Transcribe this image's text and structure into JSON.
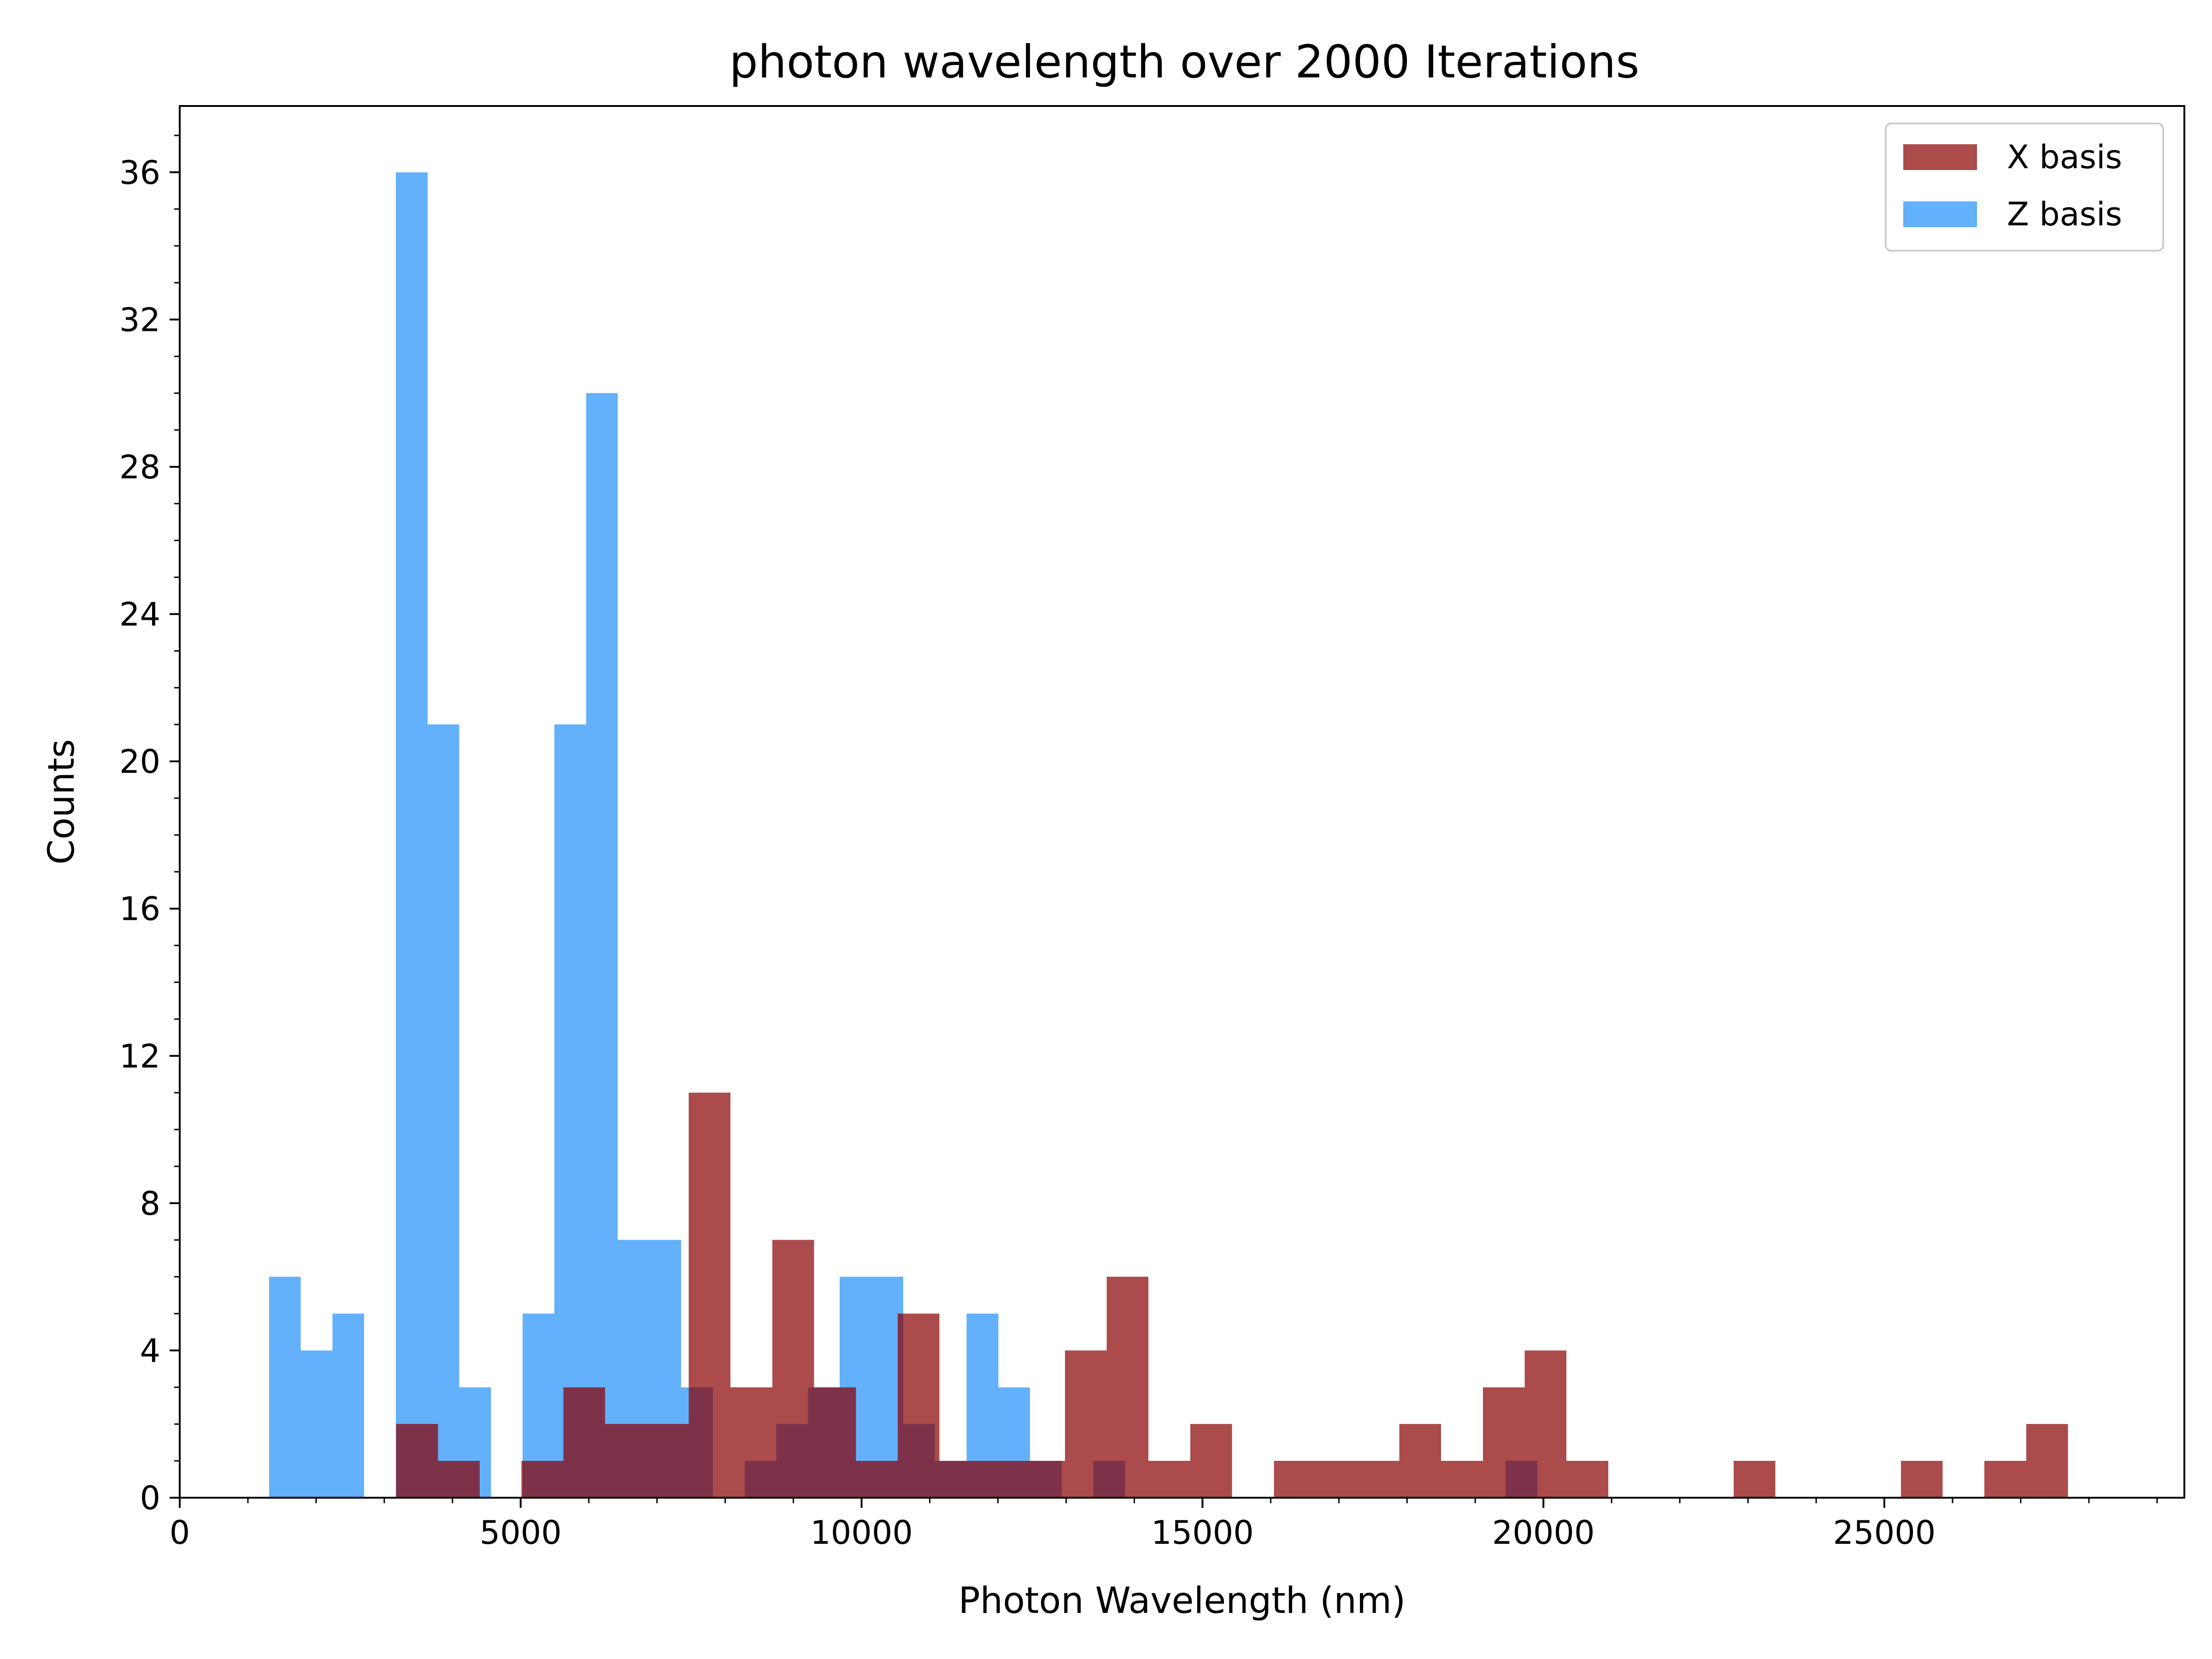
{
  "chart_data": {
    "type": "bar",
    "title": "photon wavelength over 2000 Iterations",
    "xlabel": "Photon Wavelength (nm)",
    "ylabel": "Counts",
    "xlim": [
      0,
      29400
    ],
    "ylim": [
      0,
      37.8
    ],
    "xticks": [
      0,
      5000,
      10000,
      15000,
      20000,
      25000
    ],
    "xtick_labels": [
      "0",
      "5000",
      "10000",
      "15000",
      "20000",
      "25000"
    ],
    "yticks": [
      0,
      4,
      8,
      12,
      16,
      20,
      24,
      28,
      32,
      36
    ],
    "ytick_labels": [
      "0",
      "4",
      "8",
      "12",
      "16",
      "20",
      "24",
      "28",
      "32",
      "36"
    ],
    "grid": false,
    "legend": "top-right",
    "overlap_color": "#7e3249",
    "series": [
      {
        "name": "X basis",
        "color": "#ab4b4b",
        "bins": [
          {
            "x0": 3174,
            "x1": 3787,
            "count": 2
          },
          {
            "x0": 3787,
            "x1": 4400,
            "count": 1
          },
          {
            "x0": 5013,
            "x1": 5626,
            "count": 1
          },
          {
            "x0": 5626,
            "x1": 6239,
            "count": 3
          },
          {
            "x0": 6239,
            "x1": 6852,
            "count": 2
          },
          {
            "x0": 6852,
            "x1": 7465,
            "count": 2
          },
          {
            "x0": 7465,
            "x1": 8078,
            "count": 11
          },
          {
            "x0": 8078,
            "x1": 8691,
            "count": 3
          },
          {
            "x0": 8691,
            "x1": 9304,
            "count": 7
          },
          {
            "x0": 9304,
            "x1": 9917,
            "count": 3
          },
          {
            "x0": 9917,
            "x1": 10530,
            "count": 1
          },
          {
            "x0": 10530,
            "x1": 11143,
            "count": 5
          },
          {
            "x0": 11143,
            "x1": 11756,
            "count": 1
          },
          {
            "x0": 11756,
            "x1": 12369,
            "count": 1
          },
          {
            "x0": 12369,
            "x1": 12982,
            "count": 1
          },
          {
            "x0": 12982,
            "x1": 13595,
            "count": 4
          },
          {
            "x0": 13595,
            "x1": 14208,
            "count": 6
          },
          {
            "x0": 14208,
            "x1": 14821,
            "count": 1
          },
          {
            "x0": 14821,
            "x1": 15434,
            "count": 2
          },
          {
            "x0": 16047,
            "x1": 16660,
            "count": 1
          },
          {
            "x0": 16660,
            "x1": 17273,
            "count": 1
          },
          {
            "x0": 17273,
            "x1": 17886,
            "count": 1
          },
          {
            "x0": 17886,
            "x1": 18499,
            "count": 2
          },
          {
            "x0": 18499,
            "x1": 19112,
            "count": 1
          },
          {
            "x0": 19112,
            "x1": 19725,
            "count": 3
          },
          {
            "x0": 19725,
            "x1": 20338,
            "count": 4
          },
          {
            "x0": 20338,
            "x1": 20951,
            "count": 1
          },
          {
            "x0": 22790,
            "x1": 23403,
            "count": 1
          },
          {
            "x0": 25242,
            "x1": 25855,
            "count": 1
          },
          {
            "x0": 26468,
            "x1": 27081,
            "count": 1
          },
          {
            "x0": 27081,
            "x1": 27694,
            "count": 2
          }
        ]
      },
      {
        "name": "Z basis",
        "color": "#63b0fb",
        "bins": [
          {
            "x0": 1310,
            "x1": 1775,
            "count": 6
          },
          {
            "x0": 1775,
            "x1": 2240,
            "count": 4
          },
          {
            "x0": 2240,
            "x1": 2705,
            "count": 5
          },
          {
            "x0": 3170,
            "x1": 3635,
            "count": 36
          },
          {
            "x0": 3635,
            "x1": 4100,
            "count": 21
          },
          {
            "x0": 4100,
            "x1": 4565,
            "count": 3
          },
          {
            "x0": 5030,
            "x1": 5495,
            "count": 5
          },
          {
            "x0": 5495,
            "x1": 5960,
            "count": 21
          },
          {
            "x0": 5960,
            "x1": 6425,
            "count": 30
          },
          {
            "x0": 6425,
            "x1": 6890,
            "count": 7
          },
          {
            "x0": 6890,
            "x1": 7355,
            "count": 7
          },
          {
            "x0": 7355,
            "x1": 7820,
            "count": 3
          },
          {
            "x0": 8285,
            "x1": 8750,
            "count": 1
          },
          {
            "x0": 8750,
            "x1": 9215,
            "count": 2
          },
          {
            "x0": 9215,
            "x1": 9680,
            "count": 3
          },
          {
            "x0": 9680,
            "x1": 10145,
            "count": 6
          },
          {
            "x0": 10145,
            "x1": 10610,
            "count": 6
          },
          {
            "x0": 10610,
            "x1": 11075,
            "count": 2
          },
          {
            "x0": 11075,
            "x1": 11540,
            "count": 1
          },
          {
            "x0": 11540,
            "x1": 12005,
            "count": 5
          },
          {
            "x0": 12005,
            "x1": 12470,
            "count": 3
          },
          {
            "x0": 12470,
            "x1": 12935,
            "count": 1
          },
          {
            "x0": 13400,
            "x1": 13865,
            "count": 1
          },
          {
            "x0": 19445,
            "x1": 19910,
            "count": 1
          }
        ]
      }
    ]
  }
}
